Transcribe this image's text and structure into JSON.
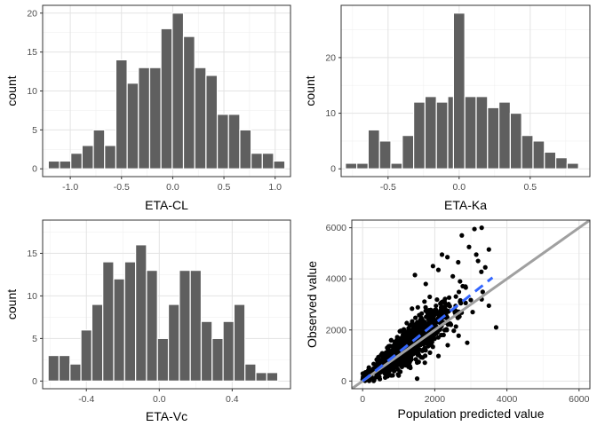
{
  "chart_data": [
    {
      "type": "bar",
      "xlabel": "ETA-CL",
      "ylabel": "count",
      "xlim": [
        -1.27,
        1.15
      ],
      "ylim": [
        -1,
        21
      ],
      "x_ticks": [
        -1.0,
        -0.5,
        0.0,
        0.5,
        1.0
      ],
      "x_tick_labels": [
        "-1.0",
        "-0.5",
        "0.0",
        "0.5",
        "1.0"
      ],
      "y_ticks": [
        0,
        5,
        10,
        15,
        20
      ],
      "y_tick_labels": [
        "0",
        "5",
        "10",
        "15",
        "20"
      ],
      "bin_centers": [
        -1.16,
        -1.05,
        -0.94,
        -0.83,
        -0.72,
        -0.61,
        -0.5,
        -0.39,
        -0.28,
        -0.17,
        -0.06,
        0.05,
        0.16,
        0.27,
        0.38,
        0.49,
        0.6,
        0.71,
        0.82,
        0.93,
        1.04
      ],
      "bin_width": 0.11,
      "values": [
        1,
        1,
        2,
        3,
        5,
        3,
        14,
        11,
        13,
        13,
        18,
        20,
        17,
        13,
        12,
        7,
        7,
        5,
        2,
        2,
        1
      ],
      "grid": true
    },
    {
      "type": "bar",
      "xlabel": "ETA-Ka",
      "ylabel": "count",
      "xlim": [
        -0.83,
        0.92
      ],
      "ylim": [
        -1.4,
        29.4
      ],
      "x_ticks": [
        -0.5,
        0.0,
        0.5
      ],
      "x_tick_labels": [
        "-0.5",
        "0.0",
        "0.5"
      ],
      "y_ticks": [
        0,
        10,
        20
      ],
      "y_tick_labels": [
        "0",
        "10",
        "20"
      ],
      "bin_centers": [
        -0.76,
        -0.68,
        -0.6,
        -0.52,
        -0.44,
        -0.36,
        -0.28,
        -0.2,
        -0.12,
        -0.04,
        0.0,
        0.08,
        0.16,
        0.24,
        0.32,
        0.4,
        0.48,
        0.56,
        0.64,
        0.72,
        0.8
      ],
      "bin_width": 0.08,
      "values": [
        1,
        1,
        7,
        5,
        1,
        6,
        12,
        13,
        12,
        13,
        28,
        13,
        13,
        11,
        12,
        10,
        6,
        5,
        3,
        2,
        1
      ],
      "grid": true
    },
    {
      "type": "bar",
      "xlabel": "ETA-Vc",
      "ylabel": "count",
      "xlim": [
        -0.64,
        0.72
      ],
      "ylim": [
        -0.9,
        18.9
      ],
      "x_ticks": [
        -0.4,
        0.0,
        0.4
      ],
      "x_tick_labels": [
        "-0.4",
        "0.0",
        "0.4"
      ],
      "y_ticks": [
        0,
        5,
        10,
        15
      ],
      "y_tick_labels": [
        "0",
        "5",
        "10",
        "15"
      ],
      "bin_centers": [
        -0.58,
        -0.52,
        -0.46,
        -0.4,
        -0.34,
        -0.28,
        -0.22,
        -0.16,
        -0.1,
        -0.04,
        0.02,
        0.08,
        0.14,
        0.2,
        0.26,
        0.32,
        0.38,
        0.44,
        0.5,
        0.56,
        0.62
      ],
      "bin_width": 0.06,
      "values": [
        3,
        3,
        2,
        6,
        9,
        14,
        12,
        14,
        16,
        13,
        5,
        9,
        13,
        13,
        7,
        5,
        7,
        9,
        2,
        1,
        1
      ],
      "grid": true
    },
    {
      "type": "scatter",
      "xlabel": "Population predicted value",
      "ylabel": "Observed value",
      "xlim": [
        -300,
        6300
      ],
      "ylim": [
        -300,
        6300
      ],
      "x_ticks": [
        0,
        2000,
        4000,
        6000
      ],
      "x_tick_labels": [
        "0",
        "2000",
        "4000",
        "6000"
      ],
      "y_ticks": [
        0,
        2000,
        4000,
        6000
      ],
      "y_tick_labels": [
        "0",
        "2000",
        "4000",
        "6000"
      ],
      "identity_line": {
        "color": "#a0a0a0"
      },
      "trend_line": {
        "x": [
          0,
          3600
        ],
        "y": [
          0,
          4050
        ],
        "color": "#3366ff",
        "dashed": true
      },
      "cloud": {
        "x_center": 1200,
        "y_center": 1300,
        "x_spread": 650,
        "slope": 1.1,
        "noise": 450,
        "n": 900
      },
      "points_outliers": [
        {
          "x": 3100,
          "y": 5950
        },
        {
          "x": 3300,
          "y": 6000
        },
        {
          "x": 2750,
          "y": 5700
        },
        {
          "x": 2950,
          "y": 5250
        },
        {
          "x": 3150,
          "y": 4950
        },
        {
          "x": 3500,
          "y": 5150
        },
        {
          "x": 2350,
          "y": 4850
        },
        {
          "x": 2650,
          "y": 4650
        },
        {
          "x": 3400,
          "y": 4450
        },
        {
          "x": 3200,
          "y": 4700
        },
        {
          "x": 1950,
          "y": 4500
        },
        {
          "x": 2100,
          "y": 4350
        },
        {
          "x": 1450,
          "y": 4150
        },
        {
          "x": 2200,
          "y": 4950
        },
        {
          "x": 3700,
          "y": 2100
        },
        {
          "x": 3500,
          "y": 2950
        },
        {
          "x": 3300,
          "y": 3200
        },
        {
          "x": 3050,
          "y": 2700
        },
        {
          "x": 2900,
          "y": 1500
        },
        {
          "x": 2700,
          "y": 3900
        },
        {
          "x": 2500,
          "y": 4100
        },
        {
          "x": 1750,
          "y": 3800
        },
        {
          "x": 2850,
          "y": 3700
        }
      ],
      "grid": true
    }
  ]
}
